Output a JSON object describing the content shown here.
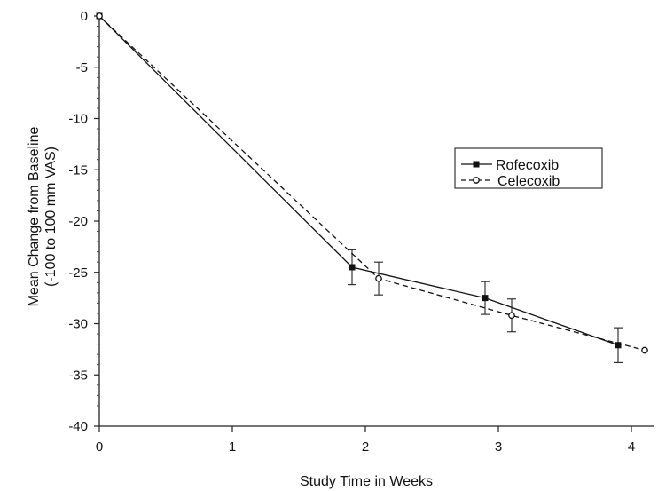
{
  "chart_data": {
    "type": "line",
    "title": "",
    "xlabel": "Study Time in Weeks",
    "ylabel": [
      "Mean Change from Baseline",
      "(-100 to 100 mm VAS)"
    ],
    "xlim": [
      0,
      4
    ],
    "ylim": [
      -40,
      0
    ],
    "xticks": [
      "0",
      "1",
      "2",
      "3",
      "4"
    ],
    "yticks": [
      "0",
      "-5",
      "-10",
      "-15",
      "-20",
      "-25",
      "-30",
      "-35",
      "-40"
    ],
    "xtick_values": [
      0,
      1,
      2,
      3,
      4
    ],
    "ytick_values": [
      0,
      -5,
      -10,
      -15,
      -20,
      -25,
      -30,
      -35,
      -40
    ],
    "grid": false,
    "legend": "right",
    "series": [
      {
        "name": "Rofecoxib",
        "line": "solid",
        "marker": "filled-square",
        "color": "#111111",
        "x": [
          0,
          1.9,
          2.9,
          3.9
        ],
        "y": [
          0,
          -24.5,
          -27.5,
          -32.1
        ],
        "err": [
          0,
          1.7,
          1.6,
          1.7
        ]
      },
      {
        "name": "Celecoxib",
        "line": "dashed",
        "marker": "open-circle",
        "color": "#111111",
        "x": [
          0,
          2.1,
          3.1,
          4.1
        ],
        "y": [
          0,
          -25.6,
          -29.2,
          -32.6
        ],
        "err": [
          0,
          1.6,
          1.6,
          0
        ]
      }
    ]
  }
}
